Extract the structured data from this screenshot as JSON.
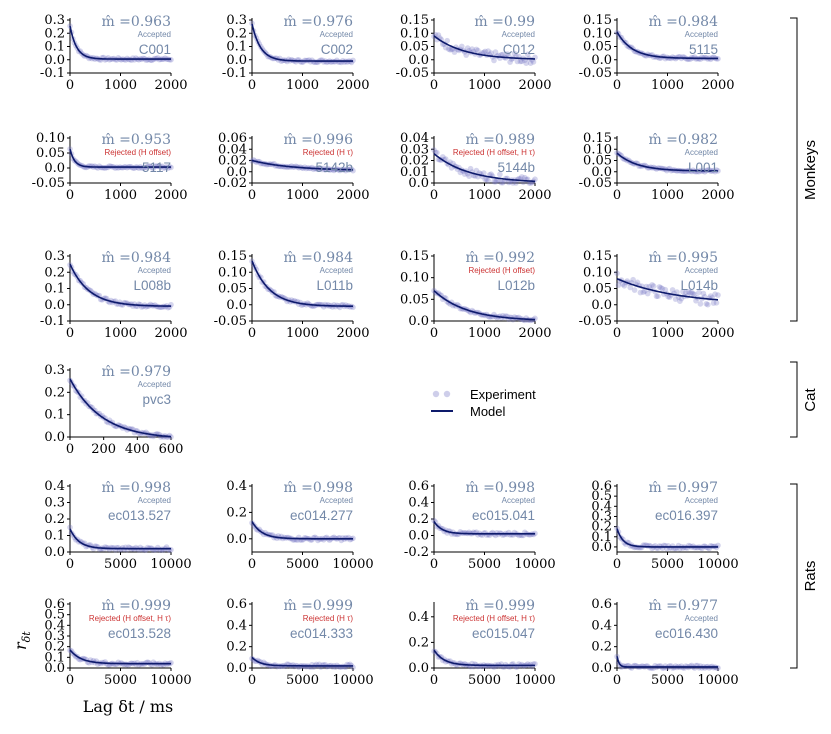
{
  "figure": {
    "xlabel": "Lag δt / ms",
    "ylabel": "r",
    "ylabel_sub": "δt",
    "groups": [
      "Monkeys",
      "Cat",
      "Rats"
    ],
    "legend": {
      "experiment": "Experiment",
      "model": "Model"
    },
    "colors": {
      "points": "#7373c4",
      "model": "#0d1a6b",
      "label": "#7388a8",
      "rejected": "#cc3333"
    }
  },
  "chart_data": [
    {
      "type": "scatter",
      "name": "C001",
      "mhat": "0.963",
      "status": "Accepted",
      "amp": 0.25,
      "tau": 130,
      "offset": 0.005,
      "xlim": [
        0,
        2000
      ],
      "xticks": [
        0,
        1000,
        2000
      ],
      "ylim": [
        -0.1,
        0.3
      ],
      "yticks": [
        -0.1,
        0.0,
        0.1,
        0.2,
        0.3
      ]
    },
    {
      "type": "scatter",
      "name": "C002",
      "mhat": "0.976",
      "status": "Accepted",
      "amp": 0.28,
      "tau": 170,
      "offset": -0.01,
      "xlim": [
        0,
        2000
      ],
      "xticks": [
        0,
        1000,
        2000
      ],
      "ylim": [
        -0.1,
        0.3
      ],
      "yticks": [
        -0.1,
        0.0,
        0.1,
        0.2,
        0.3
      ]
    },
    {
      "type": "scatter",
      "name": "C012",
      "mhat": "0.99",
      "status": "Accepted",
      "amp": 0.09,
      "tau": 600,
      "offset": 0.0,
      "xlim": [
        0,
        2000
      ],
      "xticks": [
        0,
        1000,
        2000
      ],
      "ylim": [
        -0.05,
        0.15
      ],
      "yticks": [
        -0.05,
        0.0,
        0.05,
        0.1,
        0.15
      ]
    },
    {
      "type": "scatter",
      "name": "5115",
      "mhat": "0.984",
      "status": "Accepted",
      "amp": 0.1,
      "tau": 300,
      "offset": 0.005,
      "xlim": [
        0,
        2000
      ],
      "xticks": [
        0,
        1000,
        2000
      ],
      "ylim": [
        -0.05,
        0.15
      ],
      "yticks": [
        -0.05,
        0.0,
        0.05,
        0.1,
        0.15
      ]
    },
    {
      "type": "scatter",
      "name": "5117",
      "mhat": "0.953",
      "status": "Rejected",
      "reason": "(H offset)",
      "amp": 0.06,
      "tau": 90,
      "offset": 0.003,
      "xlim": [
        0,
        2000
      ],
      "xticks": [
        0,
        1000,
        2000
      ],
      "ylim": [
        -0.05,
        0.1
      ],
      "yticks": [
        -0.05,
        0.0,
        0.05,
        0.1
      ]
    },
    {
      "type": "scatter",
      "name": "5142b",
      "mhat": "0.996",
      "status": "Rejected",
      "reason": "(H τ)",
      "amp": 0.018,
      "tau": 800,
      "offset": 0.002,
      "xlim": [
        0,
        2000
      ],
      "xticks": [
        0,
        1000,
        2000
      ],
      "ylim": [
        -0.02,
        0.06
      ],
      "yticks": [
        -0.02,
        0.0,
        0.02,
        0.04,
        0.06
      ]
    },
    {
      "type": "scatter",
      "name": "5144b",
      "mhat": "0.989",
      "status": "Rejected",
      "reason": "(H offset, H τ)",
      "amp": 0.026,
      "tau": 700,
      "offset": 0.0,
      "xlim": [
        0,
        2000
      ],
      "xticks": [
        0,
        1000,
        2000
      ],
      "ylim": [
        0.0,
        0.04
      ],
      "yticks": [
        0.0,
        0.01,
        0.02,
        0.03,
        0.04
      ]
    },
    {
      "type": "scatter",
      "name": "L001",
      "mhat": "0.982",
      "status": "Accepted",
      "amp": 0.08,
      "tau": 400,
      "offset": 0.003,
      "xlim": [
        0,
        2000
      ],
      "xticks": [
        0,
        1000,
        2000
      ],
      "ylim": [
        -0.05,
        0.15
      ],
      "yticks": [
        -0.05,
        0.0,
        0.05,
        0.1,
        0.15
      ]
    },
    {
      "type": "scatter",
      "name": "L008b",
      "mhat": "0.984",
      "status": "Accepted",
      "amp": 0.26,
      "tau": 380,
      "offset": -0.01,
      "xlim": [
        0,
        2000
      ],
      "xticks": [
        0,
        1000,
        2000
      ],
      "ylim": [
        -0.1,
        0.3
      ],
      "yticks": [
        -0.1,
        0.0,
        0.1,
        0.2,
        0.3
      ]
    },
    {
      "type": "scatter",
      "name": "L011b",
      "mhat": "0.984",
      "status": "Accepted",
      "amp": 0.14,
      "tau": 350,
      "offset": -0.005,
      "xlim": [
        0,
        2000
      ],
      "xticks": [
        0,
        1000,
        2000
      ],
      "ylim": [
        -0.05,
        0.15
      ],
      "yticks": [
        -0.05,
        0.0,
        0.05,
        0.1,
        0.15
      ]
    },
    {
      "type": "scatter",
      "name": "L012b",
      "mhat": "0.992",
      "status": "Rejected",
      "reason": "(H offset)",
      "amp": 0.07,
      "tau": 650,
      "offset": 0.0,
      "xlim": [
        0,
        2000
      ],
      "xticks": [
        0,
        1000,
        2000
      ],
      "ylim": [
        0.0,
        0.15
      ],
      "yticks": [
        0.0,
        0.05,
        0.1,
        0.15
      ]
    },
    {
      "type": "scatter",
      "name": "L014b",
      "mhat": "0.995",
      "status": "Accepted",
      "amp": 0.08,
      "tau": 1200,
      "offset": 0.0,
      "xlim": [
        0,
        2000
      ],
      "xticks": [
        0,
        1000,
        2000
      ],
      "ylim": [
        -0.05,
        0.15
      ],
      "yticks": [
        -0.05,
        0.0,
        0.05,
        0.1,
        0.15
      ]
    },
    {
      "type": "scatter",
      "name": "pvc3",
      "mhat": "0.979",
      "status": "Accepted",
      "amp": 0.27,
      "tau": 190,
      "offset": -0.01,
      "xlim": [
        0,
        600
      ],
      "xticks": [
        0,
        200,
        400,
        600
      ],
      "ylim": [
        0.0,
        0.3
      ],
      "yticks": [
        0.0,
        0.1,
        0.2,
        0.3
      ]
    },
    {
      "type": "scatter",
      "name": "ec013.527",
      "mhat": "0.998",
      "status": "Accepted",
      "amp": 0.12,
      "tau": 900,
      "offset": 0.02,
      "xlim": [
        0,
        10000
      ],
      "xticks": [
        0,
        5000,
        10000
      ],
      "ylim": [
        0.0,
        0.4
      ],
      "yticks": [
        0.0,
        0.1,
        0.2,
        0.3,
        0.4
      ]
    },
    {
      "type": "scatter",
      "name": "ec014.277",
      "mhat": "0.998",
      "status": "Accepted",
      "amp": 0.13,
      "tau": 1000,
      "offset": 0.0,
      "xlim": [
        0,
        10000
      ],
      "xticks": [
        0,
        5000,
        10000
      ],
      "ylim": [
        -0.1,
        0.4
      ],
      "yticks": [
        0.0,
        0.2,
        0.4
      ]
    },
    {
      "type": "scatter",
      "name": "ec015.041",
      "mhat": "0.998",
      "status": "Accepted",
      "amp": 0.15,
      "tau": 800,
      "offset": 0.02,
      "xlim": [
        0,
        10000
      ],
      "xticks": [
        0,
        5000,
        10000
      ],
      "ylim": [
        -0.2,
        0.6
      ],
      "yticks": [
        -0.2,
        0.0,
        0.2,
        0.4,
        0.6
      ]
    },
    {
      "type": "scatter",
      "name": "ec016.397",
      "mhat": "0.997",
      "status": "Accepted",
      "amp": 0.18,
      "tau": 600,
      "offset": 0.0,
      "xlim": [
        0,
        10000
      ],
      "xticks": [
        0,
        5000,
        10000
      ],
      "ylim": [
        -0.05,
        0.6
      ],
      "yticks": [
        0.0,
        0.1,
        0.2,
        0.3,
        0.4,
        0.5,
        0.6
      ]
    },
    {
      "type": "scatter",
      "name": "ec013.528",
      "mhat": "0.999",
      "status": "Rejected",
      "reason": "(H offset, H τ)",
      "amp": 0.13,
      "tau": 1100,
      "offset": 0.04,
      "xlim": [
        0,
        10000
      ],
      "xticks": [
        0,
        5000,
        10000
      ],
      "ylim": [
        0.0,
        0.6
      ],
      "yticks": [
        0.0,
        0.1,
        0.2,
        0.3,
        0.4,
        0.5,
        0.6
      ]
    },
    {
      "type": "scatter",
      "name": "ec014.333",
      "mhat": "0.999",
      "status": "Rejected",
      "reason": "(H τ)",
      "amp": 0.08,
      "tau": 800,
      "offset": 0.02,
      "xlim": [
        0,
        10000
      ],
      "xticks": [
        0,
        5000,
        10000
      ],
      "ylim": [
        0.0,
        0.6
      ],
      "yticks": [
        0.0,
        0.2,
        0.4,
        0.6
      ]
    },
    {
      "type": "scatter",
      "name": "ec015.047",
      "mhat": "0.999",
      "status": "Rejected",
      "reason": "(H offset, H τ)",
      "amp": 0.12,
      "tau": 1000,
      "offset": 0.02,
      "xlim": [
        0,
        10000
      ],
      "xticks": [
        0,
        5000,
        10000
      ],
      "ylim": [
        0.0,
        0.5
      ],
      "yticks": [
        0.0,
        0.2,
        0.4
      ]
    },
    {
      "type": "scatter",
      "name": "ec016.430",
      "mhat": "0.977",
      "status": "Accepted",
      "amp": 0.1,
      "tau": 200,
      "offset": 0.01,
      "xlim": [
        0,
        10000
      ],
      "xticks": [
        0,
        5000,
        10000
      ],
      "ylim": [
        0.0,
        0.6
      ],
      "yticks": [
        0.0,
        0.2,
        0.4,
        0.6
      ]
    }
  ]
}
